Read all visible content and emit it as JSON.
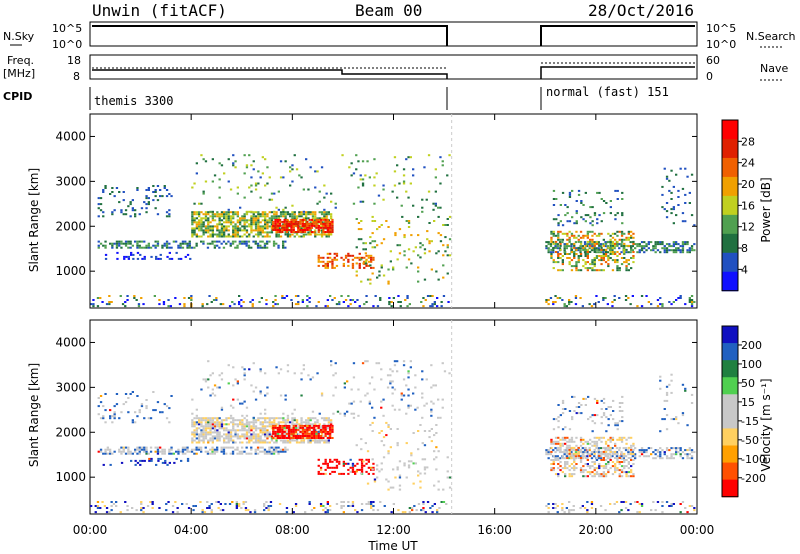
{
  "header": {
    "station": "Unwin (fitACF)",
    "beam": "Beam 00",
    "date": "28/Oct/2016"
  },
  "strip_labels": {
    "nsky": "N.Sky",
    "nsky_hi": "10^5",
    "nsky_lo": "10^0",
    "nsearch": "N.Search",
    "freq_line1": "Freq.",
    "freq_line2": "[MHz]",
    "freq_hi": "18",
    "freq_lo": "8",
    "nave": "Nave",
    "nave_hi": "60",
    "nave_lo": "0",
    "cpid": "CPID"
  },
  "cpid_blocks": [
    {
      "label": "themis 3300",
      "start": "00:00",
      "end": "14:20"
    },
    {
      "label": "normal (fast) 151",
      "start": "18:00",
      "end": "24:00"
    }
  ],
  "colors": {
    "power": [
      "#1010ff",
      "#2050c0",
      "#207040",
      "#50a050",
      "#c0d020",
      "#f0a000",
      "#f06000",
      "#e02000",
      "#ff0000"
    ],
    "velocity": [
      "#ff0000",
      "#ff5000",
      "#ffa000",
      "#ffd060",
      "#c8c8c8",
      "#c8c8c8",
      "#50d050",
      "#208040",
      "#2060c0",
      "#1010c0"
    ]
  },
  "chart_data": [
    {
      "type": "heatmap",
      "name": "power-panel",
      "ylabel": "Slant Range [km]",
      "xlabel": "",
      "colorbar_label": "Power [dB]",
      "colorbar_ticks": [
        "4",
        "8",
        "12",
        "16",
        "20",
        "24",
        "28"
      ],
      "yticks": [
        "1000",
        "2000",
        "3000",
        "4000"
      ],
      "ylim": [
        180,
        4500
      ],
      "xlim": [
        0,
        24
      ],
      "xtick_labels": [
        "00:00",
        "04:00",
        "08:00",
        "12:00",
        "16:00",
        "20:00",
        "00:00"
      ],
      "data_gap_hours": [
        14.3,
        18.0
      ]
    },
    {
      "type": "heatmap",
      "name": "velocity-panel",
      "ylabel": "Slant Range [km]",
      "xlabel": "Time UT",
      "colorbar_label": "Velocity [m s⁻¹]",
      "colorbar_ticks": [
        "200",
        "100",
        "50",
        "15",
        "-15",
        "-50",
        "-100",
        "-200"
      ],
      "yticks": [
        "1000",
        "2000",
        "3000",
        "4000"
      ],
      "ylim": [
        180,
        4500
      ],
      "xlim": [
        0,
        24
      ],
      "xtick_labels": [
        "00:00",
        "04:00",
        "08:00",
        "12:00",
        "16:00",
        "20:00",
        "00:00"
      ],
      "data_gap_hours": [
        14.3,
        18.0
      ]
    }
  ]
}
